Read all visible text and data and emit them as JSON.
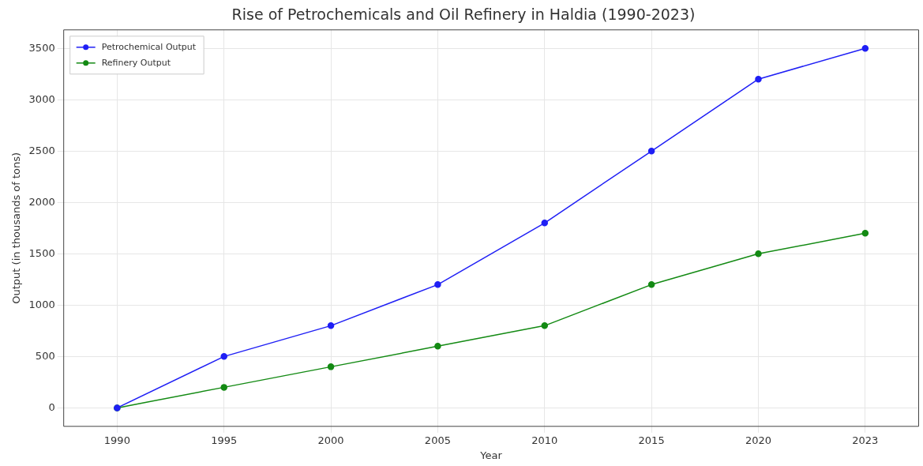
{
  "chart_data": {
    "type": "line",
    "title": "Rise of Petrochemicals and Oil Refinery in Haldia (1990-2023)",
    "xlabel": "Year",
    "ylabel": "Output (in thousands of tons)",
    "categories": [
      "1990",
      "1995",
      "2000",
      "2005",
      "2010",
      "2015",
      "2020",
      "2023"
    ],
    "series": [
      {
        "name": "Petrochemical Output",
        "color": "#1f1ff5",
        "values": [
          0,
          500,
          800,
          1200,
          1800,
          2500,
          3200,
          3500
        ]
      },
      {
        "name": "Refinery Output",
        "color": "#138a13",
        "values": [
          0,
          200,
          400,
          600,
          800,
          1200,
          1500,
          1700
        ]
      }
    ],
    "ylim": [
      -180,
      3680
    ],
    "yticks": [
      0,
      500,
      1000,
      1500,
      2000,
      2500,
      3000,
      3500
    ],
    "grid": true,
    "legend": "top left",
    "marker": "circle",
    "line_style": "solid"
  }
}
